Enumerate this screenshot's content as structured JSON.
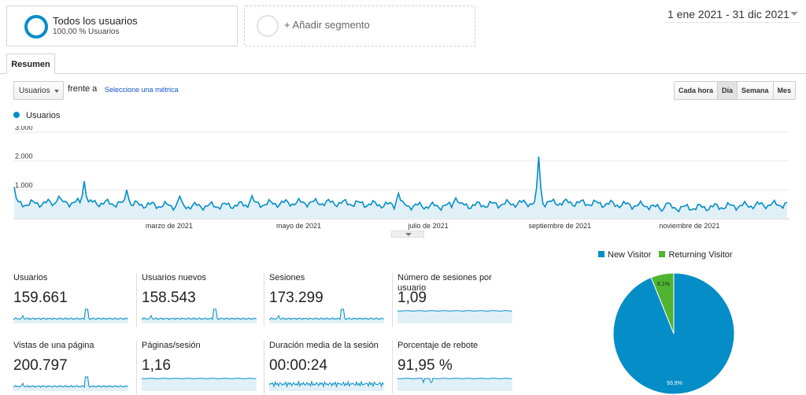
{
  "segments": {
    "active": {
      "title": "Todos los usuarios",
      "subtitle": "100,00 % Usuarios"
    },
    "add_label": "+ Añadir segmento"
  },
  "date_range": "1 ene 2021 - 31 dic 2021",
  "tab": "Resumen",
  "controls": {
    "metric_select": "Usuarios",
    "versus": "frente a",
    "choose_metric": "Seleccione una métrica",
    "granularity": [
      "Cada hora",
      "Día",
      "Semana",
      "Mes"
    ],
    "active_granularity": "Día"
  },
  "colors": {
    "primary": "#058dc7",
    "secondary": "#50b432",
    "fill": "#e1f0f7"
  },
  "chart_data": [
    {
      "type": "area",
      "series": [
        {
          "name": "Usuarios",
          "color": "#058dc7"
        }
      ],
      "y_ticks": [
        "3.000",
        "2.000",
        "1.000"
      ],
      "ylim": [
        0,
        3000
      ],
      "x_tick_labels": [
        "marzo de 2021",
        "mayo de 2021",
        "julio de 2021",
        "septiembre de 2021",
        "noviembre de 2021"
      ],
      "daily_baseline": 500,
      "peaks": [
        {
          "date": "2021-01-01",
          "value": 1100
        },
        {
          "date": "2021-01-22",
          "value": 780
        },
        {
          "date": "2021-02-03",
          "value": 1300
        },
        {
          "date": "2021-02-23",
          "value": 1000
        },
        {
          "date": "2021-03-20",
          "value": 780
        },
        {
          "date": "2021-04-23",
          "value": 800
        },
        {
          "date": "2021-07-01",
          "value": 880
        },
        {
          "date": "2021-07-28",
          "value": 720
        },
        {
          "date": "2021-09-05",
          "value": 2150
        },
        {
          "date": "2021-11-05",
          "value": 550
        }
      ]
    },
    {
      "type": "pie",
      "legend": [
        "New Visitor",
        "Returning Visitor"
      ],
      "values": [
        93.9,
        6.1
      ],
      "labels": [
        "93,9%",
        "6,1%"
      ],
      "colors": [
        "#058dc7",
        "#50b432"
      ]
    }
  ],
  "metrics": [
    {
      "label": "Usuarios",
      "value": "159.661",
      "spark": "spiky"
    },
    {
      "label": "Usuarios nuevos",
      "value": "158.543",
      "spark": "spiky"
    },
    {
      "label": "Sesiones",
      "value": "173.299",
      "spark": "spiky"
    },
    {
      "label": "Número de sesiones por usuario",
      "value": "1,09",
      "spark": "flat"
    },
    {
      "label": "Vistas de una página",
      "value": "200.797",
      "spark": "spiky"
    },
    {
      "label": "Páginas/sesión",
      "value": "1,16",
      "spark": "flat"
    },
    {
      "label": "Duración media de la sesión",
      "value": "00:00:24",
      "spark": "noisy"
    },
    {
      "label": "Porcentaje de rebote",
      "value": "91,95 %",
      "spark": "flat-dip"
    }
  ]
}
